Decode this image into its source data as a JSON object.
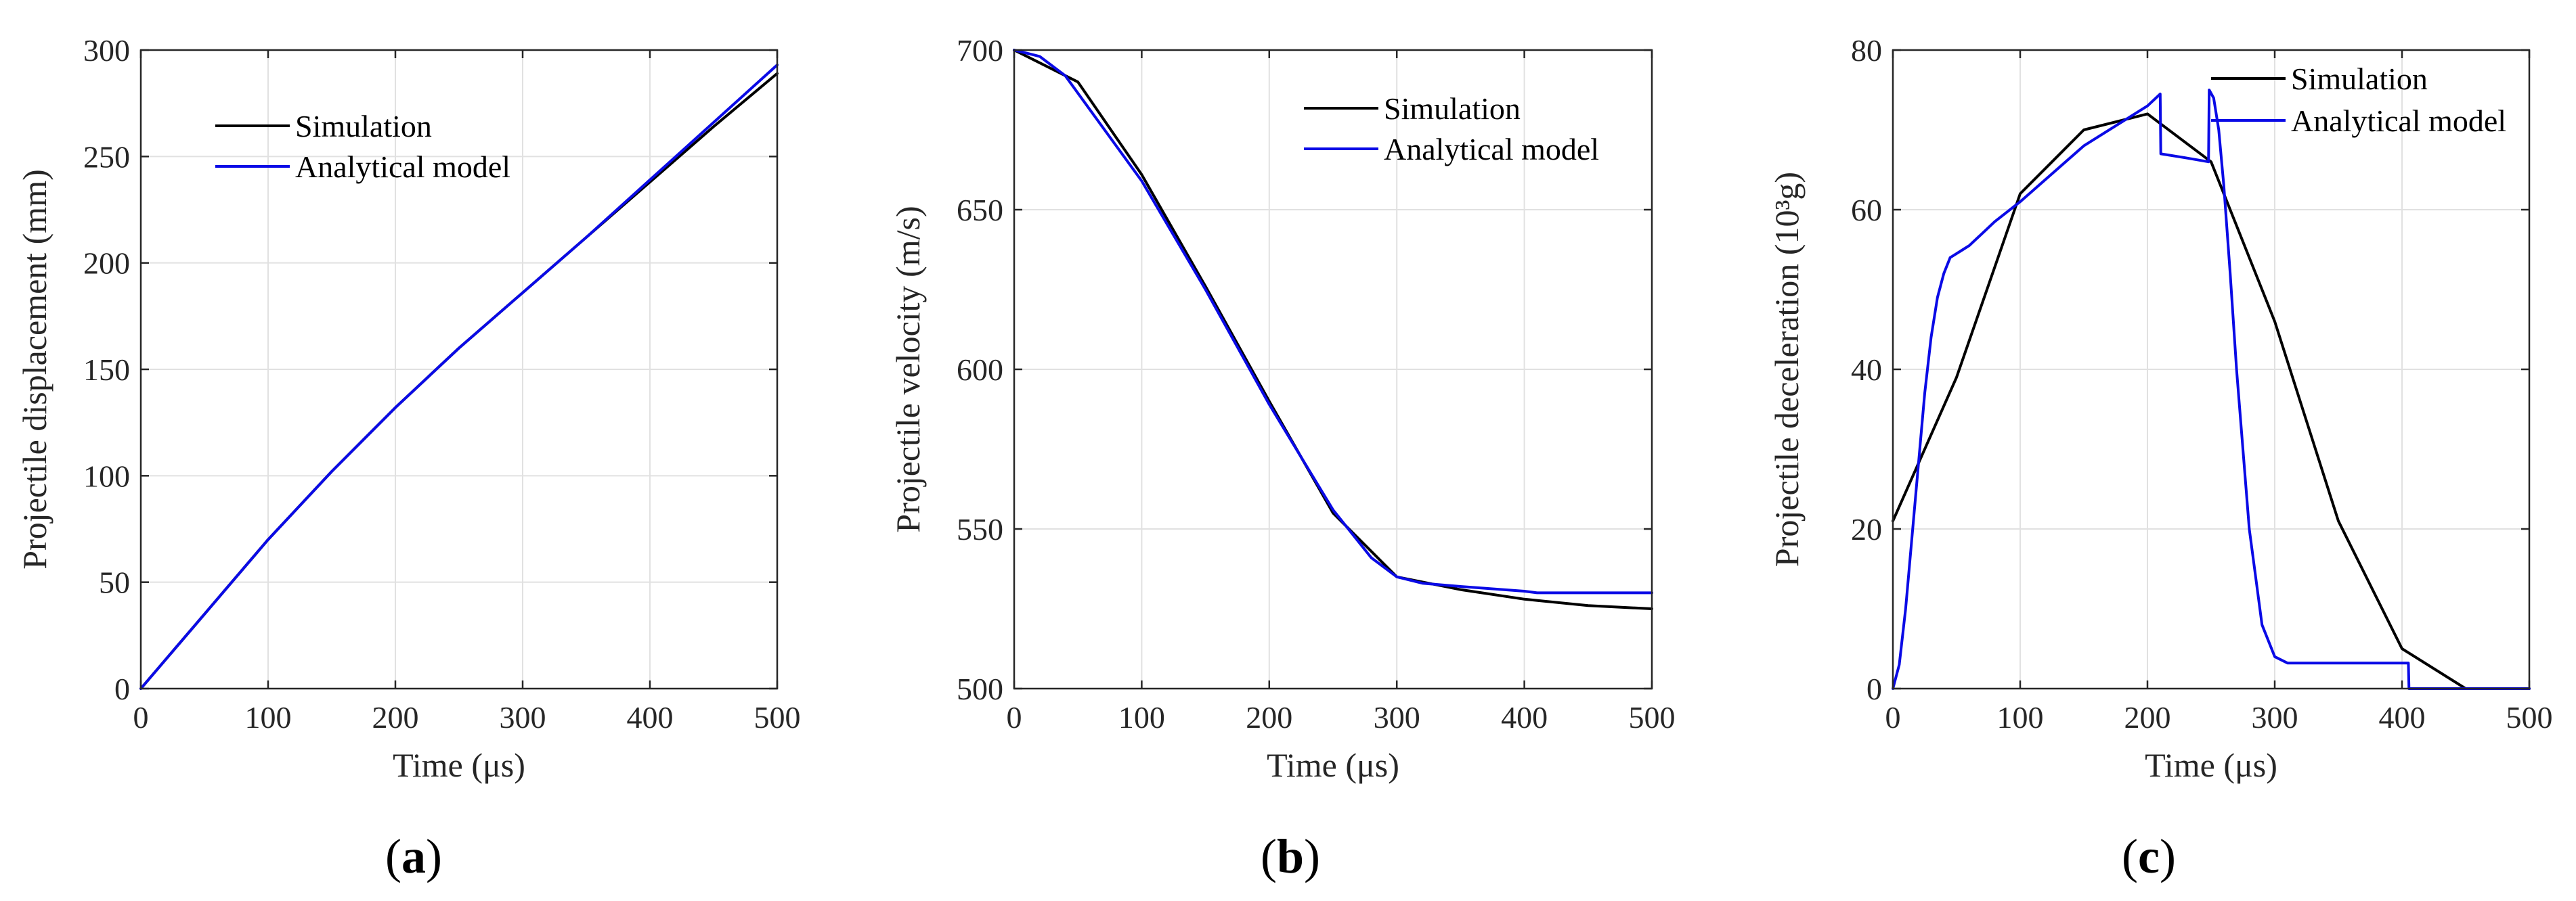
{
  "colors": {
    "simulation": "#000000",
    "analytical": "#0a0ae6",
    "axis": "#262626",
    "grid": "#e1e1e1"
  },
  "legend_labels": {
    "simulation": "Simulation",
    "analytical": "Analytical model"
  },
  "chart_data": [
    {
      "id": "a",
      "type": "line",
      "panel_label": "a",
      "xlabel": "Time (μs)",
      "ylabel": "Projectile displacement (mm)",
      "xlim": [
        0,
        500
      ],
      "ylim": [
        0,
        300
      ],
      "xticks": [
        0,
        100,
        200,
        300,
        400,
        500
      ],
      "yticks": [
        0,
        50,
        100,
        150,
        200,
        250,
        300
      ],
      "grid": true,
      "legend_position": "upper-left",
      "series": [
        {
          "name": "Simulation",
          "color_key": "simulation",
          "x": [
            0,
            50,
            100,
            150,
            200,
            250,
            300,
            350,
            400,
            450,
            500
          ],
          "y": [
            0,
            35,
            70,
            102,
            132,
            160,
            186,
            212,
            238,
            264,
            289
          ]
        },
        {
          "name": "Analytical model",
          "color_key": "analytical",
          "x": [
            0,
            50,
            100,
            150,
            200,
            250,
            300,
            350,
            400,
            450,
            500
          ],
          "y": [
            0,
            35,
            70,
            102,
            132,
            160,
            186,
            212,
            239,
            266,
            293
          ]
        }
      ]
    },
    {
      "id": "b",
      "type": "line",
      "panel_label": "b",
      "xlabel": "Time (μs)",
      "ylabel": "Projectile velocity (m/s)",
      "xlim": [
        0,
        500
      ],
      "ylim": [
        500,
        700
      ],
      "xticks": [
        0,
        100,
        200,
        300,
        400,
        500
      ],
      "yticks": [
        500,
        550,
        600,
        650,
        700
      ],
      "grid": true,
      "legend_position": "upper-right",
      "series": [
        {
          "name": "Simulation",
          "color_key": "simulation",
          "x": [
            0,
            50,
            100,
            150,
            200,
            250,
            300,
            350,
            400,
            450,
            500
          ],
          "y": [
            700,
            690,
            661,
            626,
            590,
            555,
            535,
            531,
            528,
            526,
            525
          ]
        },
        {
          "name": "Analytical model",
          "color_key": "analytical",
          "x": [
            0,
            20,
            40,
            60,
            100,
            150,
            200,
            250,
            280,
            300,
            320,
            350,
            400,
            410,
            450,
            500
          ],
          "y": [
            700,
            698,
            692,
            681,
            659,
            625,
            589,
            556,
            541,
            535,
            533,
            532,
            530.5,
            530,
            530,
            530
          ]
        }
      ]
    },
    {
      "id": "c",
      "type": "line",
      "panel_label": "c",
      "xlabel": "Time (μs)",
      "ylabel": "Projectile deceleration (10³g)",
      "xlim": [
        0,
        500
      ],
      "ylim": [
        0,
        80
      ],
      "xticks": [
        0,
        100,
        200,
        300,
        400,
        500
      ],
      "yticks": [
        0,
        20,
        40,
        60,
        80
      ],
      "grid": true,
      "legend_position": "top-right",
      "series": [
        {
          "name": "Simulation",
          "color_key": "simulation",
          "x": [
            0,
            50,
            100,
            150,
            200,
            250,
            300,
            350,
            400,
            450,
            500
          ],
          "y": [
            21,
            39,
            62,
            70,
            72,
            66,
            46,
            21,
            5,
            0,
            0
          ]
        },
        {
          "name": "Analytical model",
          "color_key": "analytical",
          "x": [
            0,
            5,
            10,
            15,
            20,
            25,
            30,
            35,
            40,
            45,
            50,
            55,
            60,
            70,
            80,
            100,
            150,
            200,
            210,
            210.5,
            230,
            248,
            248.5,
            252,
            256,
            260,
            265,
            270,
            280,
            290,
            300,
            310,
            320,
            330,
            350,
            380,
            405,
            405.5,
            450,
            500
          ],
          "y": [
            0,
            3,
            10,
            19,
            28,
            37,
            44,
            49,
            52,
            54,
            54.5,
            55,
            55.5,
            57,
            58.5,
            61,
            68,
            73,
            74.5,
            67,
            66.5,
            66,
            75,
            74,
            70,
            63,
            52,
            40,
            20,
            8,
            4,
            3.2,
            3.2,
            3.2,
            3.2,
            3.2,
            3.2,
            0,
            0,
            0
          ]
        }
      ]
    }
  ]
}
